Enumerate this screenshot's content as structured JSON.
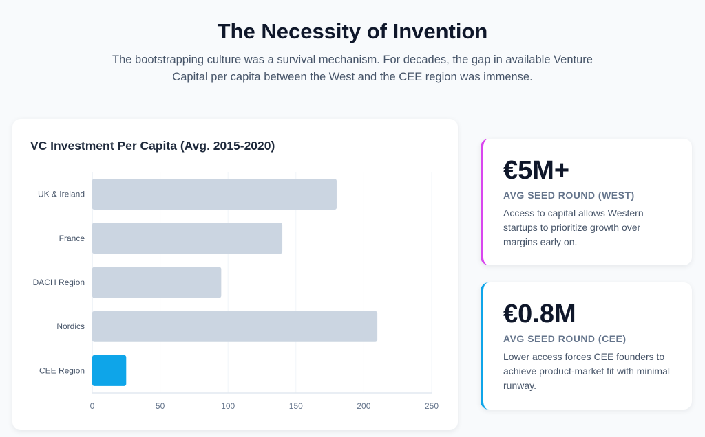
{
  "header": {
    "title": "The Necessity of Invention",
    "subtitle": "The bootstrapping culture was a survival mechanism. For decades, the gap in available Venture Capital per capita between the West and the CEE region was immense."
  },
  "chart_data": {
    "type": "bar",
    "orientation": "horizontal",
    "title": "VC Investment Per Capita (Avg. 2015-2020)",
    "categories": [
      "UK & Ireland",
      "France",
      "DACH Region",
      "Nordics",
      "CEE Region"
    ],
    "values": [
      180,
      140,
      95,
      210,
      25
    ],
    "colors": [
      "#cbd5e1",
      "#cbd5e1",
      "#cbd5e1",
      "#cbd5e1",
      "#0ea5e9"
    ],
    "xlim": [
      0,
      250
    ],
    "xticks": [
      "0",
      "50",
      "100",
      "150",
      "200",
      "250"
    ],
    "grid": true,
    "xlabel": "",
    "ylabel": ""
  },
  "stats": [
    {
      "value": "€5M+",
      "label": "AVG SEED ROUND (WEST)",
      "desc": "Access to capital allows Western startups to prioritize growth over margins early on.",
      "accent": "#d946ef"
    },
    {
      "value": "€0.8M",
      "label": "AVG SEED ROUND (CEE)",
      "desc": "Lower access forces CEE founders to achieve product-market fit with minimal runway.",
      "accent": "#0ea5e9"
    }
  ]
}
